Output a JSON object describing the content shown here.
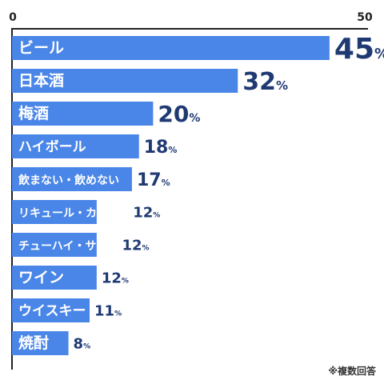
{
  "chart_data": {
    "type": "bar",
    "orientation": "horizontal",
    "axis_min_label": "0",
    "axis_max_label": "50",
    "xlim": [
      0,
      50
    ],
    "categories": [
      "ビール",
      "日本酒",
      "梅酒",
      "ハイボール",
      "飲まない・飲めない",
      "リキュール・カクテル",
      "チューハイ・サワー",
      "ワイン",
      "ウイスキー",
      "焼酎"
    ],
    "values": [
      45,
      32,
      20,
      18,
      17,
      12,
      12,
      12,
      11,
      8
    ],
    "value_unit": "%",
    "grid": false,
    "legend": "none"
  },
  "note": "※複数回答",
  "colors": {
    "bar": "#4a86e8",
    "label_text": "#ffffff",
    "value_text": "#1f3a73",
    "axis": "#222222"
  }
}
